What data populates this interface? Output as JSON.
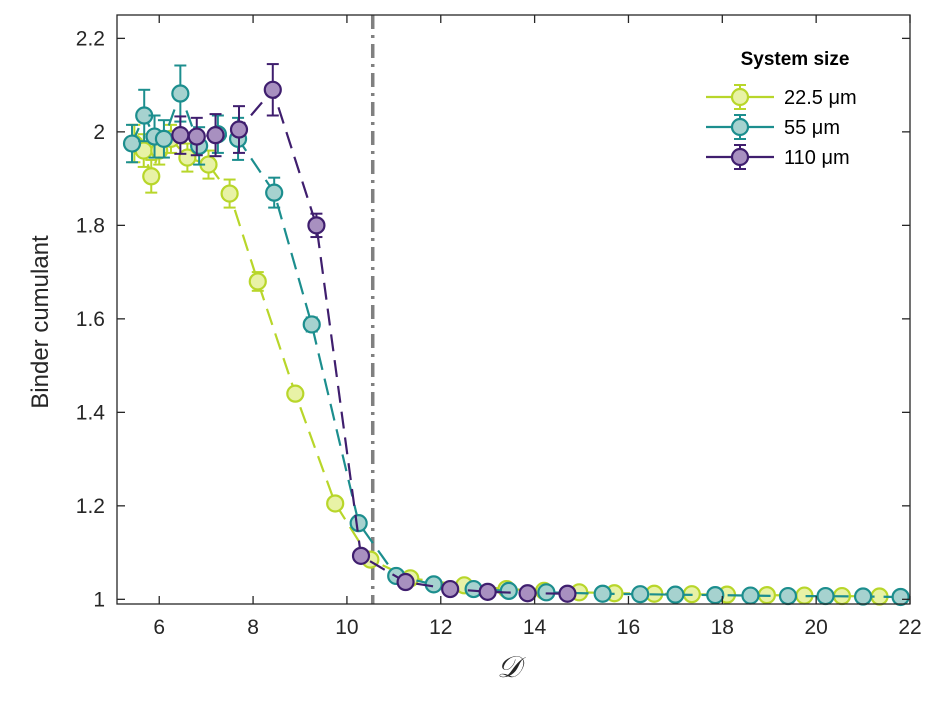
{
  "chart_data": {
    "type": "line",
    "title": "",
    "xlabel": "𝒟",
    "ylabel": "Binder cumulant",
    "xlim": [
      5.1,
      22
    ],
    "ylim": [
      0.99,
      2.25
    ],
    "xticks": [
      6,
      8,
      10,
      12,
      14,
      16,
      18,
      20,
      22
    ],
    "yticks": [
      1,
      1.2,
      1.4,
      1.6,
      1.8,
      2,
      2.2
    ],
    "ytick_labels": [
      "1",
      "1.2",
      "1.4",
      "1.6",
      "1.8",
      "2",
      "2.2"
    ],
    "xtick_labels": [
      "6",
      "8",
      "10",
      "12",
      "14",
      "16",
      "18",
      "20",
      "22"
    ],
    "vline": {
      "x": 10.55,
      "style": "dash-dot",
      "color": "#808080"
    },
    "legend": {
      "title": "System size",
      "position": "top-right"
    },
    "series": [
      {
        "name": "22.5 μm",
        "line_color": "#b8d62a",
        "fill_color": "#e8f2a6",
        "x": [
          5.47,
          5.67,
          5.83,
          6.0,
          6.25,
          6.6,
          7.05,
          7.5,
          8.1,
          8.9,
          9.75,
          10.5,
          11.35,
          12.5,
          13.4,
          14.2,
          14.95,
          15.7,
          16.55,
          17.35,
          18.1,
          18.95,
          19.75,
          20.55,
          21.35
        ],
        "values": [
          1.975,
          1.96,
          1.905,
          1.96,
          1.985,
          1.945,
          1.93,
          1.868,
          1.68,
          1.44,
          1.205,
          1.085,
          1.045,
          1.03,
          1.022,
          1.018,
          1.015,
          1.013,
          1.012,
          1.011,
          1.01,
          1.009,
          1.008,
          1.007,
          1.006
        ],
        "errors": [
          0.04,
          0.035,
          0.035,
          0.03,
          0.03,
          0.03,
          0.03,
          0.03,
          0.02,
          0.012,
          0.008,
          0.004,
          0.004,
          0.003,
          0.003,
          0.003,
          0.003,
          0.003,
          0.003,
          0.003,
          0.003,
          0.003,
          0.003,
          0.003,
          0.003
        ]
      },
      {
        "name": "55 μm",
        "line_color": "#1c8e8e",
        "fill_color": "#a6d2cf",
        "x": [
          5.42,
          5.68,
          5.9,
          6.1,
          6.45,
          6.85,
          7.25,
          7.68,
          8.45,
          9.25,
          10.25,
          11.05,
          11.85,
          12.7,
          13.45,
          14.25,
          15.45,
          16.25,
          17.0,
          17.85,
          18.6,
          19.4,
          20.2,
          21.0,
          21.8
        ],
        "values": [
          1.975,
          2.035,
          1.99,
          1.985,
          2.082,
          1.97,
          1.995,
          1.985,
          1.87,
          1.588,
          1.163,
          1.05,
          1.032,
          1.022,
          1.018,
          1.015,
          1.012,
          1.011,
          1.01,
          1.009,
          1.008,
          1.007,
          1.007,
          1.006,
          1.005
        ],
        "errors": [
          0.04,
          0.055,
          0.045,
          0.04,
          0.06,
          0.04,
          0.04,
          0.045,
          0.032,
          0.015,
          0.008,
          0.004,
          0.003,
          0.003,
          0.003,
          0.003,
          0.003,
          0.003,
          0.003,
          0.003,
          0.003,
          0.003,
          0.003,
          0.003,
          0.003
        ]
      },
      {
        "name": "110 μm",
        "line_color": "#3f1e6e",
        "fill_color": "#a890c0",
        "x": [
          6.45,
          6.8,
          7.2,
          7.7,
          8.42,
          9.35,
          10.3,
          11.25,
          12.2,
          13.0,
          13.85,
          14.7
        ],
        "values": [
          1.993,
          1.99,
          1.993,
          2.005,
          2.09,
          1.8,
          1.093,
          1.037,
          1.022,
          1.016,
          1.013,
          1.012
        ],
        "errors": [
          0.04,
          0.04,
          0.045,
          0.05,
          0.055,
          0.025,
          0.006,
          0.004,
          0.003,
          0.003,
          0.003,
          0.003
        ]
      }
    ]
  }
}
